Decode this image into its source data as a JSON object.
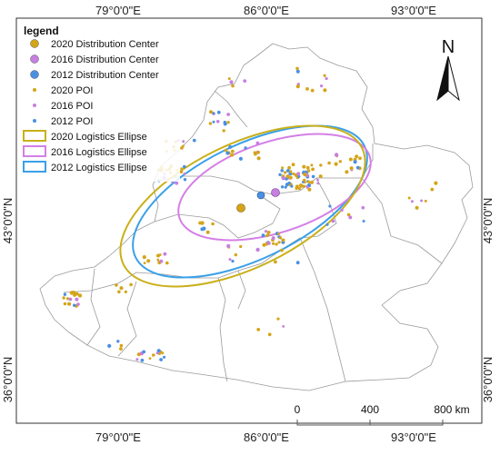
{
  "map": {
    "top_labels": [
      "79°0'0\"E",
      "86°0'0\"E",
      "93°0'0\"E"
    ],
    "bottom_labels": [
      "79°0'0\"E",
      "86°0'0\"E",
      "93°0'0\"E"
    ],
    "left_labels": [
      "43°0'0\"N",
      "36°0'0\"N"
    ],
    "right_labels": [
      "43°0'0\"N",
      "36°0'0\"N"
    ],
    "north_arrow": {
      "icon": "north-arrow-icon",
      "label": "N"
    },
    "scale_bar": {
      "ticks": [
        "0",
        "400",
        "800 km"
      ]
    }
  },
  "legend": {
    "title": "legend",
    "items": [
      {
        "label": "2020 Distribution Center",
        "symbol": "big-dot",
        "color": "#d4a51a"
      },
      {
        "label": "2016 Distribution Center",
        "symbol": "big-dot",
        "color": "#c77fe0"
      },
      {
        "label": "2012 Distribution Center",
        "symbol": "big-dot",
        "color": "#4a90e2"
      },
      {
        "label": "2020 POI",
        "symbol": "small-dot",
        "color": "#d4a51a"
      },
      {
        "label": "2016 POI",
        "symbol": "small-dot",
        "color": "#c77fe0"
      },
      {
        "label": "2012 POI",
        "symbol": "small-dot",
        "color": "#4a90e2"
      },
      {
        "label": "2020 Logistics Ellipse",
        "symbol": "ellipse",
        "color": "#c9b01a"
      },
      {
        "label": "2016 Logistics Ellipse",
        "symbol": "ellipse",
        "color": "#d47fe6"
      },
      {
        "label": "2012 Logistics Ellipse",
        "symbol": "ellipse",
        "color": "#3aa0e8"
      }
    ]
  },
  "colors": {
    "poi_2020": "#d4a51a",
    "poi_2016": "#c77fe0",
    "poi_2012": "#4a90e2",
    "boundary": "#9a9a9a"
  }
}
